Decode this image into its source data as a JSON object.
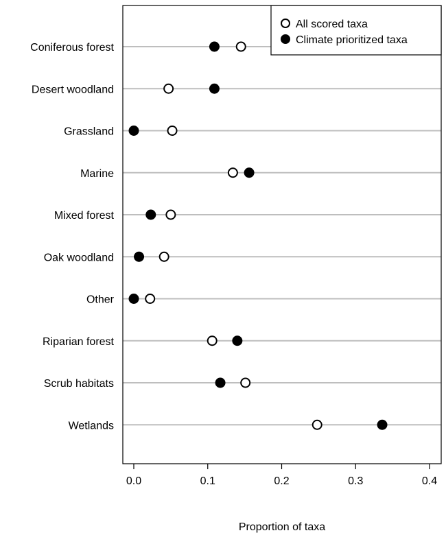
{
  "chart_data": {
    "type": "scatter",
    "subtype": "dot-plot",
    "title": "",
    "xlabel": "Proportion of taxa",
    "ylabel": "",
    "xlim": [
      0.0,
      0.4
    ],
    "xticks": [
      0.0,
      0.1,
      0.2,
      0.3,
      0.4
    ],
    "xtick_labels": [
      "0.0",
      "0.1",
      "0.2",
      "0.3",
      "0.4"
    ],
    "categories": [
      "Coniferous forest",
      "Desert woodland",
      "Grassland",
      "Marine",
      "Mixed forest",
      "Oak woodland",
      "Other",
      "Riparian forest",
      "Scrub habitats",
      "Wetlands"
    ],
    "series": [
      {
        "name": "All scored taxa",
        "marker": "open-circle",
        "values": [
          0.145,
          0.047,
          0.052,
          0.134,
          0.05,
          0.041,
          0.022,
          0.106,
          0.151,
          0.248
        ]
      },
      {
        "name": "Climate prioritized taxa",
        "marker": "filled-circle",
        "values": [
          0.109,
          0.109,
          0.0,
          0.156,
          0.023,
          0.007,
          0.0,
          0.14,
          0.117,
          0.336
        ]
      }
    ],
    "grid": "horizontal guide lines at each category",
    "legend_position": "top-right",
    "colors": {
      "marker_stroke": "#000000",
      "open_fill": "#ffffff",
      "filled_fill": "#000000",
      "guide_line": "#bebebe",
      "frame": "#000000"
    }
  }
}
